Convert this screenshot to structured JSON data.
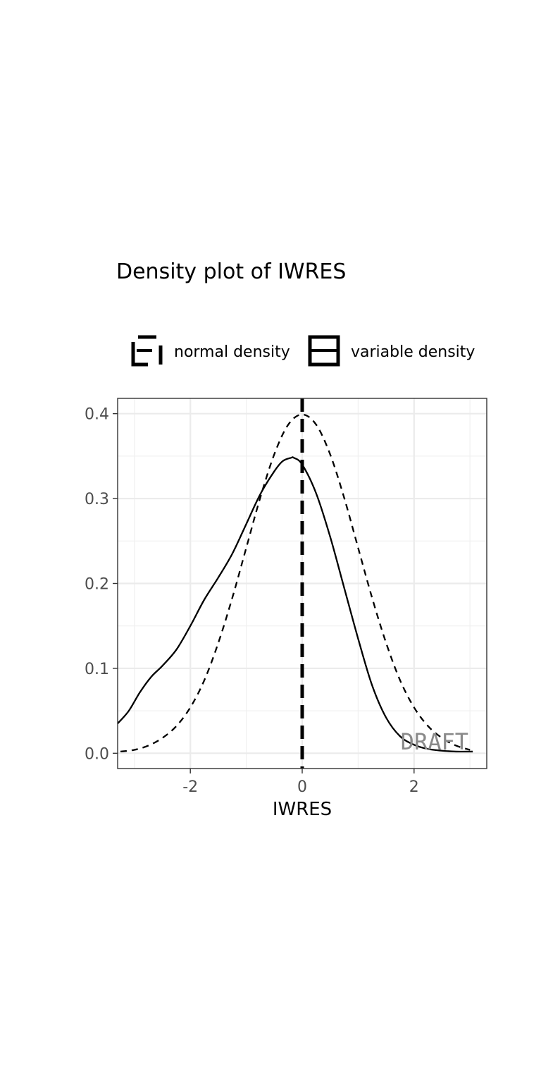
{
  "chart_data": {
    "type": "line",
    "title": "Density plot of IWRES",
    "xlabel": "IWRES",
    "ylabel": "",
    "xlim": [
      -3.3,
      3.3
    ],
    "ylim": [
      -0.018,
      0.418
    ],
    "x_ticks": [
      -2,
      0,
      2
    ],
    "x_tick_labels": [
      "-2",
      "0",
      "2"
    ],
    "y_ticks": [
      0.0,
      0.1,
      0.2,
      0.3,
      0.4
    ],
    "y_tick_labels": [
      "0.0",
      "0.1",
      "0.2",
      "0.3",
      "0.4"
    ],
    "grid": true,
    "legend_position": "top",
    "legend": [
      "normal density",
      "variable density"
    ],
    "reference_line": {
      "x": 0
    },
    "watermark": "DRAFT",
    "series": [
      {
        "name": "normal density",
        "style": "dashed",
        "x": [
          -3.25,
          -3.0,
          -2.75,
          -2.5,
          -2.25,
          -2.0,
          -1.75,
          -1.5,
          -1.25,
          -1.0,
          -0.75,
          -0.5,
          -0.25,
          0.0,
          0.25,
          0.5,
          0.75,
          1.0,
          1.25,
          1.5,
          1.75,
          2.0,
          2.25,
          2.5,
          2.75,
          3.0
        ],
        "y": [
          0.002,
          0.004,
          0.009,
          0.018,
          0.032,
          0.054,
          0.086,
          0.13,
          0.183,
          0.242,
          0.301,
          0.352,
          0.387,
          0.399,
          0.387,
          0.352,
          0.301,
          0.242,
          0.183,
          0.13,
          0.086,
          0.054,
          0.032,
          0.018,
          0.009,
          0.004
        ]
      },
      {
        "name": "variable density",
        "style": "solid",
        "x": [
          -3.3,
          -3.1,
          -2.9,
          -2.7,
          -2.5,
          -2.25,
          -2.0,
          -1.75,
          -1.5,
          -1.25,
          -1.0,
          -0.75,
          -0.5,
          -0.35,
          -0.2,
          -0.15,
          0.0,
          0.25,
          0.5,
          0.75,
          1.0,
          1.25,
          1.5,
          1.75,
          2.0,
          2.25,
          2.5,
          2.75,
          3.05
        ],
        "y": [
          0.035,
          0.05,
          0.072,
          0.09,
          0.103,
          0.122,
          0.15,
          0.181,
          0.207,
          0.235,
          0.27,
          0.305,
          0.332,
          0.344,
          0.348,
          0.348,
          0.34,
          0.306,
          0.255,
          0.195,
          0.135,
          0.08,
          0.042,
          0.02,
          0.01,
          0.005,
          0.003,
          0.002,
          0.002
        ]
      }
    ]
  }
}
